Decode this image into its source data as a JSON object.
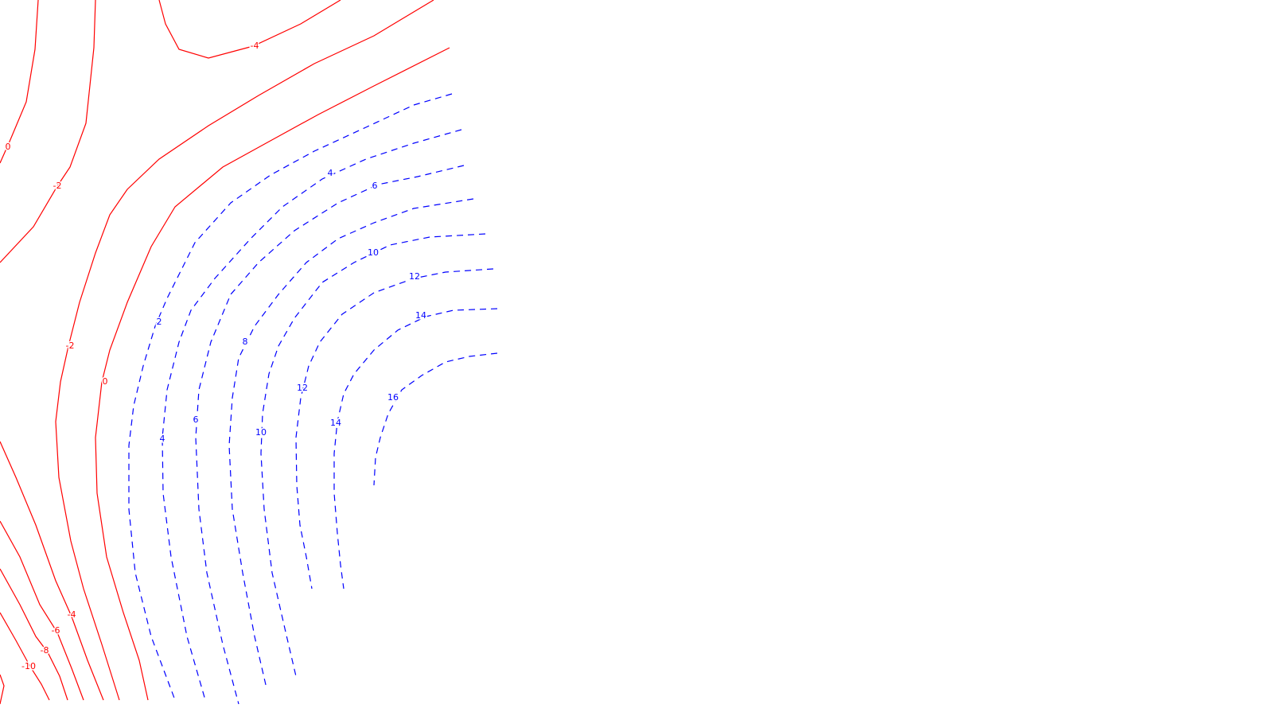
{
  "chart_data": {
    "type": "contour",
    "title": "",
    "xlabel": "",
    "ylabel": "",
    "grid": false,
    "legend": "none",
    "colors": {
      "positive": "#0000ff",
      "nonpositive": "#ff0000",
      "background": "#ffffff"
    },
    "line_styles": {
      "positive": "dashed",
      "nonpositive": "solid"
    },
    "levels": [
      "-10",
      "-8",
      "-6",
      "-4",
      "-2",
      "0",
      "2",
      "4",
      "6",
      "8",
      "10",
      "12",
      "14",
      "16"
    ],
    "labels": [
      {
        "text": "-4",
        "sign": "negative"
      },
      {
        "text": "0",
        "sign": "zero"
      },
      {
        "text": "-2",
        "sign": "negative"
      },
      {
        "text": "-2",
        "sign": "negative"
      },
      {
        "text": "0",
        "sign": "zero"
      },
      {
        "text": "-4",
        "sign": "negative"
      },
      {
        "text": "-6",
        "sign": "negative"
      },
      {
        "text": "-8",
        "sign": "negative"
      },
      {
        "text": "-10",
        "sign": "negative"
      },
      {
        "text": "2",
        "sign": "positive"
      },
      {
        "text": "4",
        "sign": "positive"
      },
      {
        "text": "6",
        "sign": "positive"
      },
      {
        "text": "8",
        "sign": "positive"
      },
      {
        "text": "10",
        "sign": "positive"
      },
      {
        "text": "12",
        "sign": "positive"
      },
      {
        "text": "14",
        "sign": "positive"
      },
      {
        "text": "16",
        "sign": "positive"
      },
      {
        "text": "4",
        "sign": "positive"
      },
      {
        "text": "6",
        "sign": "positive"
      },
      {
        "text": "10",
        "sign": "positive"
      },
      {
        "text": "12",
        "sign": "positive"
      },
      {
        "text": "14",
        "sign": "positive"
      }
    ]
  }
}
